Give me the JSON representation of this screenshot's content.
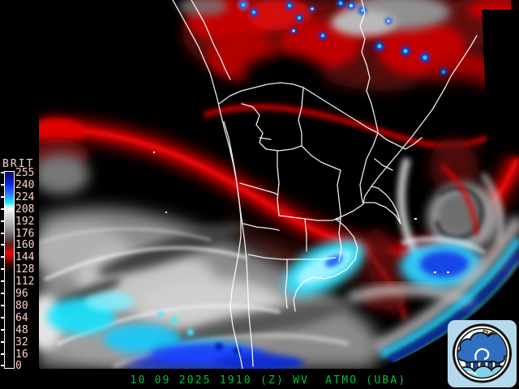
{
  "legend": {
    "title": "BRIT",
    "ticks": [
      "255",
      "240",
      "224",
      "208",
      "192",
      "176",
      "160",
      "144",
      "128",
      "112",
      "96",
      "80",
      "64",
      "48",
      "32",
      "16",
      "0"
    ],
    "colorbar_stops": [
      {
        "p": 0,
        "c": "#0d0d45"
      },
      {
        "p": 2.7,
        "c": "#0a0fa0"
      },
      {
        "p": 5.9,
        "c": "#0d1ee0"
      },
      {
        "p": 9,
        "c": "#2050ff"
      },
      {
        "p": 12.2,
        "c": "#2f8cff"
      },
      {
        "p": 14.5,
        "c": "#1fd2ff"
      },
      {
        "p": 16.1,
        "c": "#00ffff"
      },
      {
        "p": 17.6,
        "c": "#d8fffc"
      },
      {
        "p": 18.8,
        "c": "#ffffff"
      },
      {
        "p": 21.6,
        "c": "#dedede"
      },
      {
        "p": 25.5,
        "c": "#b8b8b8"
      },
      {
        "p": 29.4,
        "c": "#909090"
      },
      {
        "p": 32.5,
        "c": "#6e6464"
      },
      {
        "p": 34.9,
        "c": "#553c3c"
      },
      {
        "p": 37.3,
        "c": "#6e1616"
      },
      {
        "p": 39.6,
        "c": "#b00c0c"
      },
      {
        "p": 41.2,
        "c": "#e00606"
      },
      {
        "p": 42.7,
        "c": "#cc0505"
      },
      {
        "p": 45.1,
        "c": "#800303"
      },
      {
        "p": 47.5,
        "c": "#3c0101"
      },
      {
        "p": 49.8,
        "c": "#120000"
      },
      {
        "p": 53,
        "c": "#000000"
      },
      {
        "p": 100,
        "c": "#000000"
      }
    ]
  },
  "footer": {
    "timestamp": "10 09 2025 1910 (Z) WV  ATMO (UBA)"
  },
  "colors": {
    "bg": "#000000",
    "legend-label": "#ffcfc5",
    "legend-outline": "#ffffff",
    "green": "#00bd35",
    "border-line": "#ffffff",
    "logo-bg": "#b5d9ec",
    "logo-cloud": "#2f6fc1",
    "logo-rain": "#1d50a8",
    "logo-wave": "#84d2e8",
    "logo-sun": "#f2d23e"
  },
  "icons": {
    "logo": "atmo-uba-weather-logo"
  }
}
